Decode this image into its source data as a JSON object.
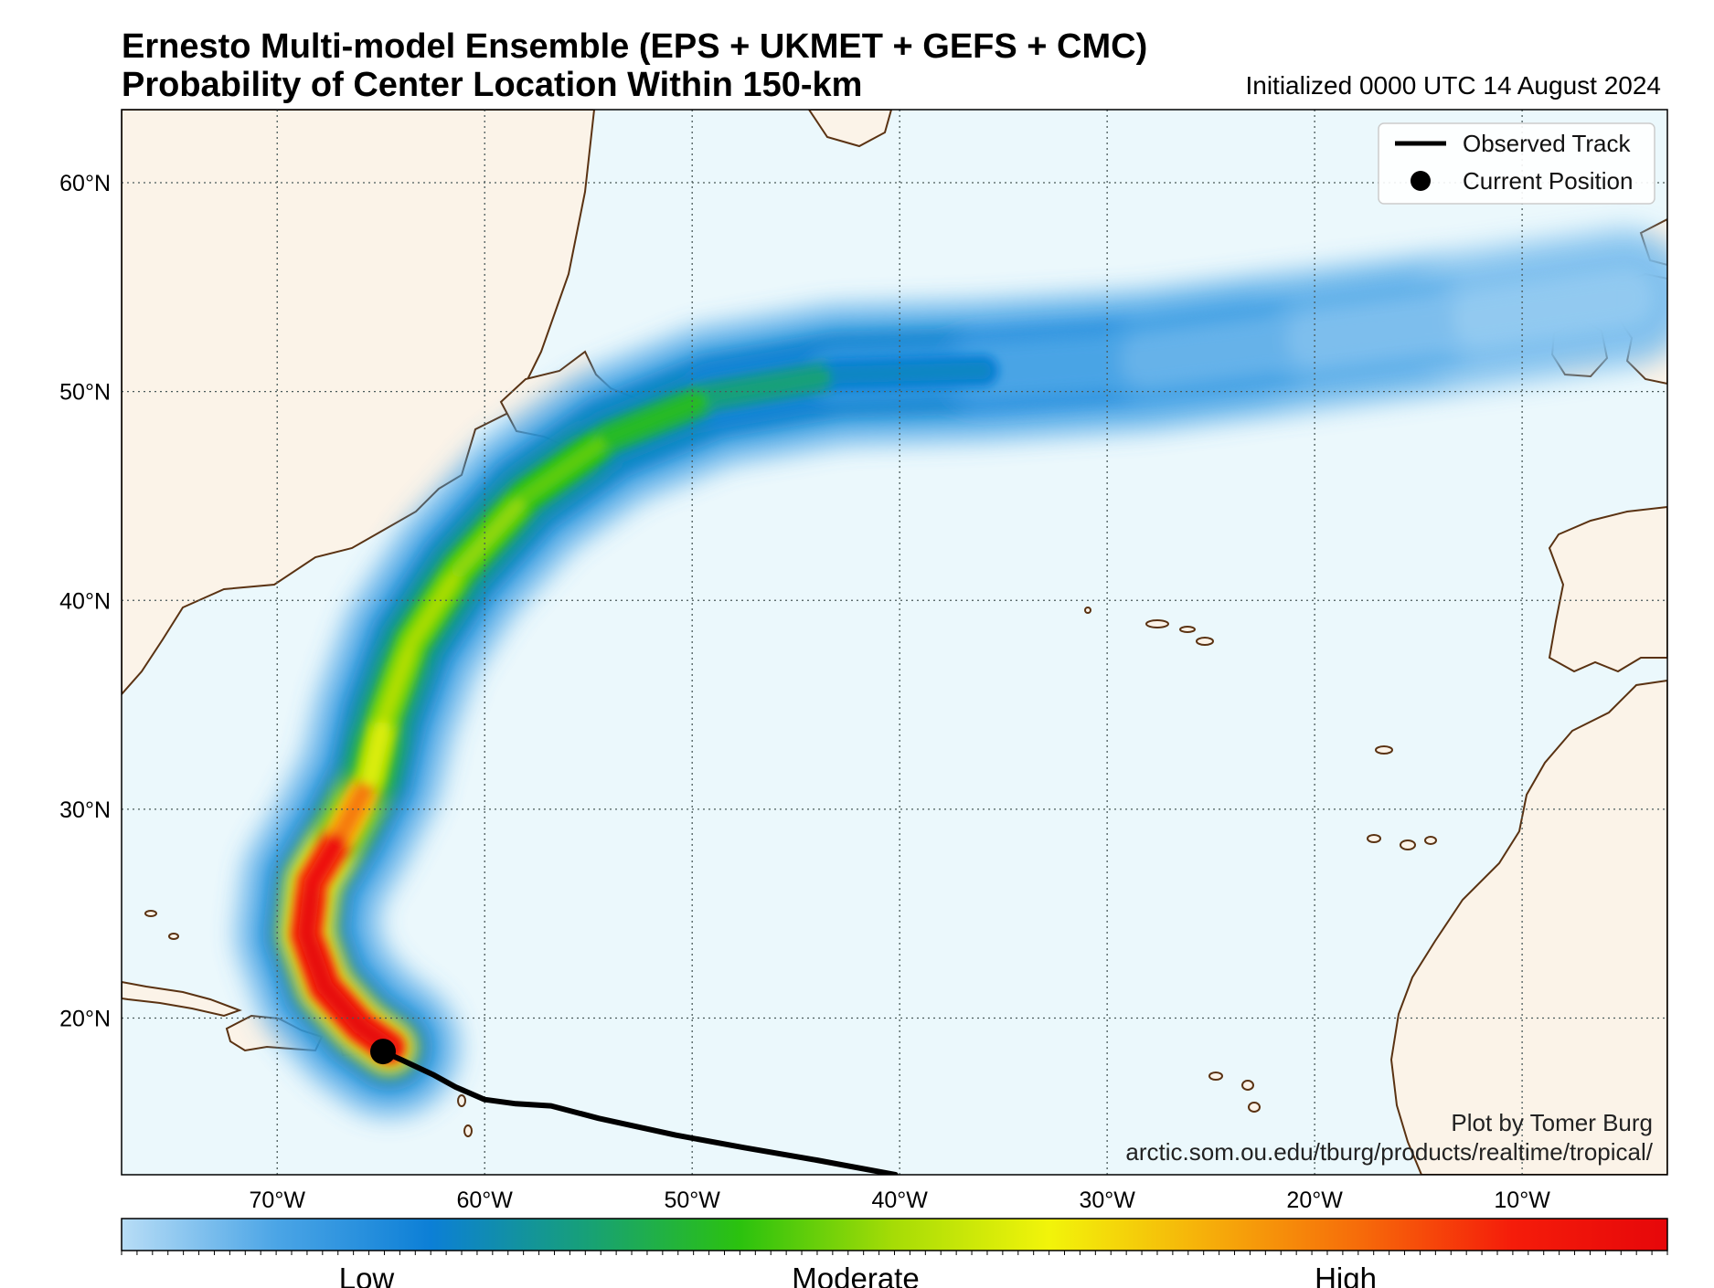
{
  "title_line1": "Ernesto Multi-model Ensemble (EPS + UKMET + GEFS + CMC)",
  "title_line2": "Probability of Center Location Within 150-km",
  "initialized": "Initialized 0000 UTC 14 August 2024",
  "map": {
    "lon_range": [
      -77.5,
      -3.0
    ],
    "lat_range": [
      12.5,
      63.5
    ],
    "ocean_color": "#ebf8fc",
    "land_color": "#fbf3e8",
    "coast_color": "#5a3212",
    "grid_color": "#4a5a5a",
    "lat_ticks": [
      {
        "value": 20,
        "label": "20°N"
      },
      {
        "value": 30,
        "label": "30°N"
      },
      {
        "value": 40,
        "label": "40°N"
      },
      {
        "value": 50,
        "label": "50°N"
      },
      {
        "value": 60,
        "label": "60°N"
      }
    ],
    "lon_ticks": [
      {
        "value": -70,
        "label": "70°W"
      },
      {
        "value": -60,
        "label": "60°W"
      },
      {
        "value": -50,
        "label": "50°W"
      },
      {
        "value": -40,
        "label": "40°W"
      },
      {
        "value": -30,
        "label": "30°W"
      },
      {
        "value": -20,
        "label": "20°W"
      },
      {
        "value": -10,
        "label": "10°W"
      }
    ]
  },
  "legend": {
    "observed_track": "Observed Track",
    "current_position": "Current Position"
  },
  "observed_track": [
    [
      -40.2,
      12.5
    ],
    [
      -44.0,
      13.2
    ],
    [
      -47.5,
      13.8
    ],
    [
      -50.8,
      14.4
    ],
    [
      -54.5,
      15.2
    ],
    [
      -56.8,
      15.8
    ],
    [
      -58.5,
      15.9
    ],
    [
      -60.0,
      16.1
    ],
    [
      -61.4,
      16.7
    ],
    [
      -62.5,
      17.3
    ],
    [
      -64.0,
      18.0
    ],
    [
      -64.9,
      18.4
    ]
  ],
  "current_position": {
    "lon": -64.9,
    "lat": 18.4
  },
  "probability_corridor": [
    {
      "lon": -64.6,
      "lat": 18.6,
      "level": 1.0
    },
    {
      "lon": -66.0,
      "lat": 19.6,
      "level": 1.0
    },
    {
      "lon": -67.7,
      "lat": 21.5,
      "level": 1.0
    },
    {
      "lon": -68.6,
      "lat": 24.0,
      "level": 1.0
    },
    {
      "lon": -68.3,
      "lat": 26.5,
      "level": 0.97
    },
    {
      "lon": -66.8,
      "lat": 29.0,
      "level": 0.94
    },
    {
      "lon": -65.5,
      "lat": 31.5,
      "level": 0.62
    },
    {
      "lon": -64.8,
      "lat": 34.5,
      "level": 0.52
    },
    {
      "lon": -63.5,
      "lat": 38.0,
      "level": 0.5
    },
    {
      "lon": -61.2,
      "lat": 41.5,
      "level": 0.5
    },
    {
      "lon": -58.0,
      "lat": 45.0,
      "level": 0.46
    },
    {
      "lon": -54.0,
      "lat": 47.8,
      "level": 0.42
    },
    {
      "lon": -49.0,
      "lat": 49.8,
      "level": 0.34
    },
    {
      "lon": -43.0,
      "lat": 50.8,
      "level": 0.26
    },
    {
      "lon": -36.0,
      "lat": 51.0,
      "level": 0.18
    },
    {
      "lon": -28.0,
      "lat": 51.5,
      "level": 0.14
    },
    {
      "lon": -20.0,
      "lat": 52.5,
      "level": 0.1
    },
    {
      "lon": -12.0,
      "lat": 53.5,
      "level": 0.07
    },
    {
      "lon": -5.0,
      "lat": 54.5,
      "level": 0.04
    }
  ],
  "colorbar": {
    "colors": [
      "#b8ddf6",
      "#4ba5e6",
      "#0c7fd6",
      "#17a078",
      "#2bc20e",
      "#a6dc06",
      "#f2f40a",
      "#f6b00a",
      "#f66c0a",
      "#f51c0a",
      "#e6070a"
    ],
    "low": "Low",
    "moderate": "Moderate",
    "high": "High"
  },
  "credit_line1": "Plot by Tomer Burg",
  "credit_line2": "arctic.som.ou.edu/tburg/products/realtime/tropical/"
}
